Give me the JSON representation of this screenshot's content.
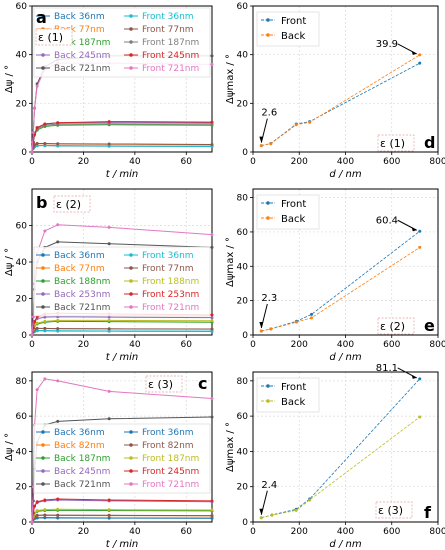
{
  "chart_data": [
    {
      "id": "a",
      "type": "line",
      "panel_label": "a",
      "epsilon_label": "ε (1)",
      "xlabel": "t / min",
      "ylabel": "Δψ / °",
      "xlim": [
        0,
        70
      ],
      "ylim": [
        0,
        60
      ],
      "xticks": [
        0,
        20,
        40,
        60
      ],
      "yticks": [
        0,
        20,
        40,
        60
      ],
      "legend": "top-center",
      "x": [
        0,
        0.5,
        1,
        2,
        5,
        10,
        30,
        70
      ],
      "series": [
        {
          "name": "Back 36nm",
          "color": "#1f77b4",
          "values": [
            0,
            1.5,
            2.2,
            2.6,
            2.6,
            2.5,
            2.4,
            2.3
          ]
        },
        {
          "name": "Front 36nm",
          "color": "#17becf",
          "values": [
            0,
            1.5,
            2.3,
            2.6,
            2.7,
            2.6,
            2.5,
            2.3
          ]
        },
        {
          "name": "Back 77nm",
          "color": "#ff7f0e",
          "values": [
            0,
            2,
            3,
            3.4,
            3.4,
            3.3,
            3.2,
            3.0
          ]
        },
        {
          "name": "Front 77nm",
          "color": "#8c564b",
          "values": [
            0,
            2,
            3,
            3.5,
            3.5,
            3.4,
            3.3,
            3.1
          ]
        },
        {
          "name": "Back 187nm",
          "color": "#2ca02c",
          "values": [
            0,
            4,
            7,
            9,
            10.5,
            11,
            11.2,
            11.0
          ]
        },
        {
          "name": "Front 187nm",
          "color": "#7f7f7f",
          "values": [
            0,
            4,
            7,
            9.5,
            11,
            11.5,
            11.6,
            11.5
          ]
        },
        {
          "name": "Back 245nm",
          "color": "#9467bd",
          "values": [
            0,
            4,
            7.5,
            10,
            11.5,
            12,
            12.2,
            12.0
          ]
        },
        {
          "name": "Front 245nm",
          "color": "#d62728",
          "values": [
            0,
            4,
            7.5,
            10,
            11.5,
            12,
            12.5,
            12.3
          ]
        },
        {
          "name": "Back 721nm",
          "color": "#555555",
          "values": [
            0,
            8,
            18,
            28,
            35,
            38,
            39.5,
            39.5
          ]
        },
        {
          "name": "Front 721nm",
          "color": "#e377c2",
          "values": [
            0,
            8,
            18,
            27,
            34,
            36.5,
            36.5,
            36
          ]
        }
      ]
    },
    {
      "id": "b",
      "type": "line",
      "panel_label": "b",
      "epsilon_label": "ε (2)",
      "xlabel": "t / min",
      "ylabel": "Δψ / °",
      "xlim": [
        0,
        70
      ],
      "ylim": [
        0,
        80
      ],
      "xticks": [
        0,
        20,
        40,
        60
      ],
      "yticks": [
        0,
        20,
        40,
        60
      ],
      "legend": "center",
      "x": [
        0,
        0.5,
        1,
        2,
        5,
        10,
        30,
        70
      ],
      "series": [
        {
          "name": "Back 36nm",
          "color": "#1f77b4",
          "values": [
            0,
            1.5,
            2,
            2.3,
            2.3,
            2.2,
            2.1,
            2.0
          ]
        },
        {
          "name": "Front 36nm",
          "color": "#17becf",
          "values": [
            0,
            1.5,
            2,
            2.4,
            2.4,
            2.3,
            2.2,
            2.1
          ]
        },
        {
          "name": "Back 77nm",
          "color": "#ff7f0e",
          "values": [
            0,
            2,
            3,
            3.5,
            3.5,
            3.4,
            3.3,
            3.2
          ]
        },
        {
          "name": "Front 77nm",
          "color": "#8c564b",
          "values": [
            0,
            2,
            3,
            3.6,
            3.6,
            3.5,
            3.4,
            3.3
          ]
        },
        {
          "name": "Back 188nm",
          "color": "#2ca02c",
          "values": [
            0,
            3,
            5,
            6,
            7,
            7.5,
            7.3,
            7.0
          ]
        },
        {
          "name": "Front 188nm",
          "color": "#bcbd22",
          "values": [
            0,
            3,
            5,
            6.5,
            7.5,
            8,
            8,
            7.8
          ]
        },
        {
          "name": "Back 253nm",
          "color": "#9467bd",
          "values": [
            0,
            4,
            7,
            9,
            9.8,
            10,
            9.8,
            9.5
          ]
        },
        {
          "name": "Front 253nm",
          "color": "#d62728",
          "values": [
            0,
            4,
            7.5,
            10,
            11.5,
            12,
            11.5,
            11
          ]
        },
        {
          "name": "Back 721nm",
          "color": "#555555",
          "values": [
            0,
            10,
            25,
            40,
            48,
            51,
            50,
            48
          ]
        },
        {
          "name": "Front 721nm",
          "color": "#e377c2",
          "values": [
            0,
            10,
            28,
            45,
            57,
            60.4,
            59,
            55
          ]
        }
      ]
    },
    {
      "id": "c",
      "type": "line",
      "panel_label": "c",
      "epsilon_label": "ε (3)",
      "xlabel": "t / min",
      "ylabel": "Δψ / °",
      "xlim": [
        0,
        70
      ],
      "ylim": [
        0,
        85
      ],
      "xticks": [
        0,
        20,
        40,
        60
      ],
      "yticks": [
        0,
        20,
        40,
        60,
        80
      ],
      "legend": "center",
      "x": [
        0,
        0.5,
        1,
        2,
        5,
        10,
        30,
        70
      ],
      "series": [
        {
          "name": "Back 36nm",
          "color": "#1f77b4",
          "values": [
            0,
            1.5,
            2,
            2.3,
            2.4,
            2.3,
            2.2,
            2.1
          ]
        },
        {
          "name": "Front 36nm",
          "color": "#1f77b4",
          "values": [
            0,
            1.5,
            2.1,
            2.4,
            2.5,
            2.4,
            2.3,
            2.2
          ]
        },
        {
          "name": "Back 82nm",
          "color": "#ff7f0e",
          "values": [
            0,
            2,
            3,
            3.6,
            3.8,
            3.7,
            3.6,
            3.5
          ]
        },
        {
          "name": "Front 82nm",
          "color": "#8c564b",
          "values": [
            0,
            2,
            3,
            3.8,
            4,
            3.9,
            3.8,
            3.6
          ]
        },
        {
          "name": "Back 187nm",
          "color": "#2ca02c",
          "values": [
            0,
            3,
            5,
            6,
            6.5,
            6.6,
            6.5,
            6.3
          ]
        },
        {
          "name": "Front 187nm",
          "color": "#bcbd22",
          "values": [
            0,
            3,
            5,
            6.5,
            7,
            7.2,
            7,
            6.8
          ]
        },
        {
          "name": "Back 245nm",
          "color": "#9467bd",
          "values": [
            0,
            5,
            9,
            11,
            12,
            12.5,
            12,
            11.5
          ]
        },
        {
          "name": "Front 245nm",
          "color": "#d62728",
          "values": [
            0,
            5,
            9,
            11.5,
            12.5,
            13,
            12.5,
            12
          ]
        },
        {
          "name": "Back 721nm",
          "color": "#555555",
          "values": [
            0,
            12,
            30,
            45,
            55,
            57,
            58.5,
            59.5
          ]
        },
        {
          "name": "Front 721nm",
          "color": "#e377c2",
          "values": [
            0,
            20,
            55,
            75,
            81.1,
            80,
            74,
            70
          ]
        }
      ]
    },
    {
      "id": "d",
      "type": "line",
      "panel_label": "d",
      "epsilon_label": "ε (1)",
      "xlabel": "d / nm",
      "ylabel": "Δψmax / °",
      "xlim": [
        0,
        800
      ],
      "ylim": [
        0,
        60
      ],
      "xticks": [
        0,
        200,
        400,
        600,
        800
      ],
      "yticks": [
        0,
        20,
        40,
        60
      ],
      "legend": "top-left",
      "x": [
        36,
        77,
        187,
        245,
        721
      ],
      "series": [
        {
          "name": "Front",
          "color": "#1f77b4",
          "values": [
            2.6,
            3.5,
            11.5,
            12.5,
            36.5
          ]
        },
        {
          "name": "Back",
          "color": "#ff7f0e",
          "values": [
            2.6,
            3.4,
            11.2,
            12.2,
            39.9
          ]
        }
      ],
      "annotations": [
        {
          "text": "2.6",
          "x": 36,
          "y": 2.6
        },
        {
          "text": "39.9",
          "x": 721,
          "y": 39.9
        }
      ]
    },
    {
      "id": "e",
      "type": "line",
      "panel_label": "e",
      "epsilon_label": "ε (2)",
      "xlabel": "d / nm",
      "ylabel": "Δψmax / °",
      "xlim": [
        0,
        800
      ],
      "ylim": [
        0,
        85
      ],
      "xticks": [
        0,
        200,
        400,
        600,
        800
      ],
      "yticks": [
        0,
        20,
        40,
        60,
        80
      ],
      "legend": "top-left",
      "x": [
        36,
        77,
        188,
        253,
        721
      ],
      "series": [
        {
          "name": "Front",
          "color": "#1f77b4",
          "values": [
            2.3,
            3.6,
            8.0,
            12.0,
            60.4
          ]
        },
        {
          "name": "Back",
          "color": "#ff7f0e",
          "values": [
            2.3,
            3.5,
            7.5,
            10.0,
            51.0
          ]
        }
      ],
      "annotations": [
        {
          "text": "2.3",
          "x": 36,
          "y": 2.3
        },
        {
          "text": "60.4",
          "x": 721,
          "y": 60.4
        }
      ]
    },
    {
      "id": "f",
      "type": "line",
      "panel_label": "f",
      "epsilon_label": "ε (3)",
      "xlabel": "d / nm",
      "ylabel": "Δψmax / °",
      "xlim": [
        0,
        800
      ],
      "ylim": [
        0,
        85
      ],
      "xticks": [
        0,
        200,
        400,
        600,
        800
      ],
      "yticks": [
        0,
        20,
        40,
        60,
        80
      ],
      "legend": "top-left",
      "x": [
        36,
        82,
        187,
        245,
        721
      ],
      "series": [
        {
          "name": "Front",
          "color": "#1f77b4",
          "values": [
            2.4,
            4.0,
            7.2,
            13.0,
            81.1
          ]
        },
        {
          "name": "Back",
          "color": "#bcbd22",
          "values": [
            2.4,
            3.8,
            6.6,
            12.5,
            59.5
          ]
        }
      ],
      "annotations": [
        {
          "text": "2.4",
          "x": 36,
          "y": 2.4
        },
        {
          "text": "81.1",
          "x": 721,
          "y": 81.1
        }
      ]
    }
  ]
}
